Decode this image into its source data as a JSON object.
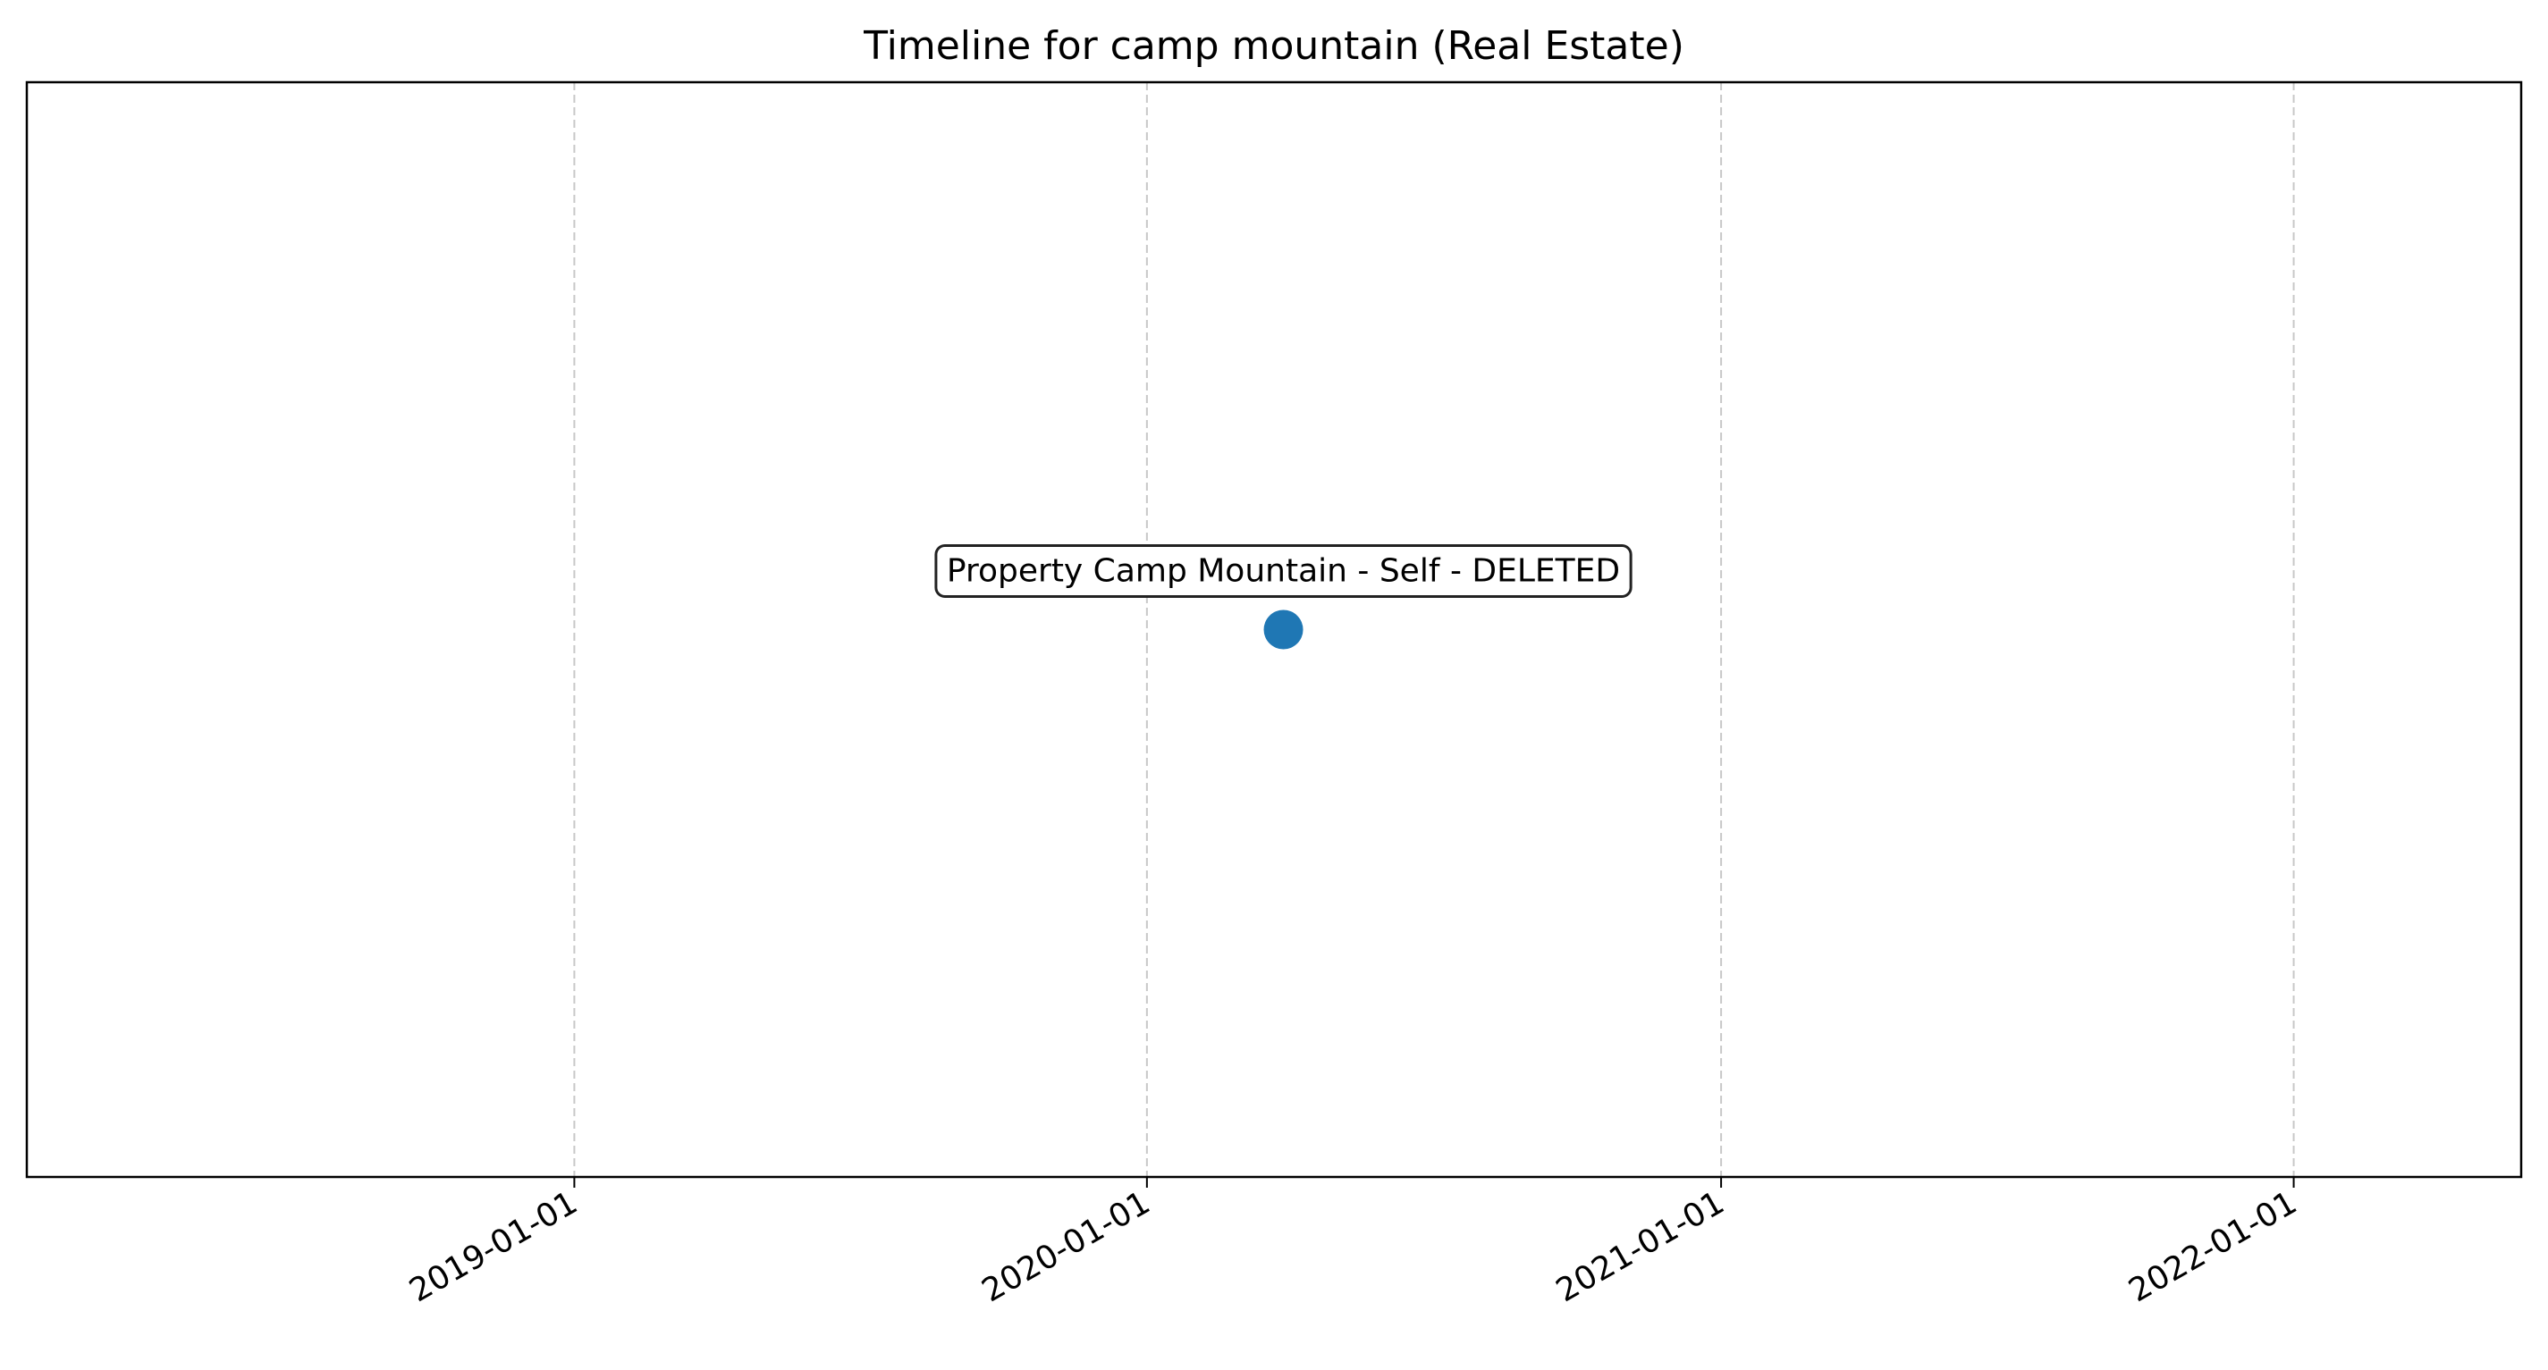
{
  "chart_data": {
    "type": "scatter",
    "title": "Timeline for camp mountain (Real Estate)",
    "xlabel": "",
    "ylabel": "",
    "x_axis_type": "date",
    "xlim": [
      "2018-01-17",
      "2022-05-26"
    ],
    "ylim": [
      0,
      1
    ],
    "x_ticks": [
      "2019-01-01",
      "2020-01-01",
      "2021-01-01",
      "2022-01-01"
    ],
    "grid": "vertical dashed",
    "legend": "none",
    "points": [
      {
        "x": "2020-03-28",
        "y": 0.5,
        "label": "Property Camp Mountain - Self - DELETED",
        "color": "#1f77b4"
      }
    ]
  },
  "colors": {
    "marker": "#1f77b4",
    "grid": "#c8c8c8",
    "axes": "#000000"
  }
}
